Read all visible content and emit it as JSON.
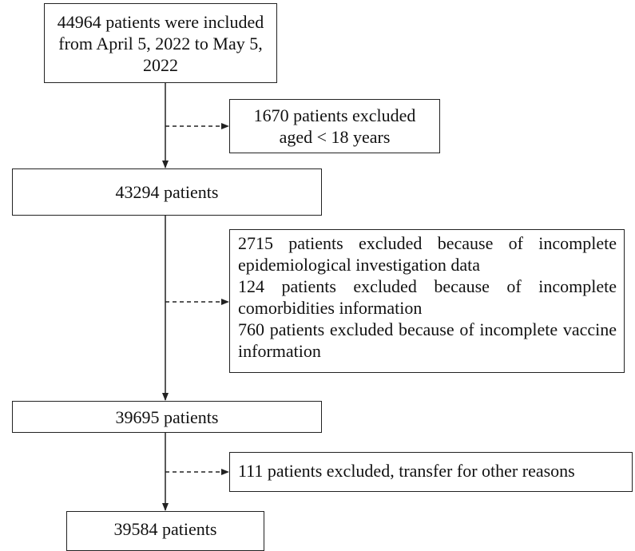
{
  "nodes": [
    {
      "label": "44964 patients were included from April 5, 2022 to May 5, 2022"
    },
    {
      "label": "1670 patients excluded aged < 18 years"
    },
    {
      "label": "43294 patients"
    },
    {
      "items": [
        "2715 patients excluded because of incomplete epidemiological investigation data",
        "124 patients excluded because of incomplete comorbidities information",
        "760 patients excluded because of incomplete vaccine information"
      ]
    },
    {
      "label": "39695 patients"
    },
    {
      "label": "111 patients excluded, transfer for other reasons"
    },
    {
      "label": "39584 patients"
    }
  ]
}
